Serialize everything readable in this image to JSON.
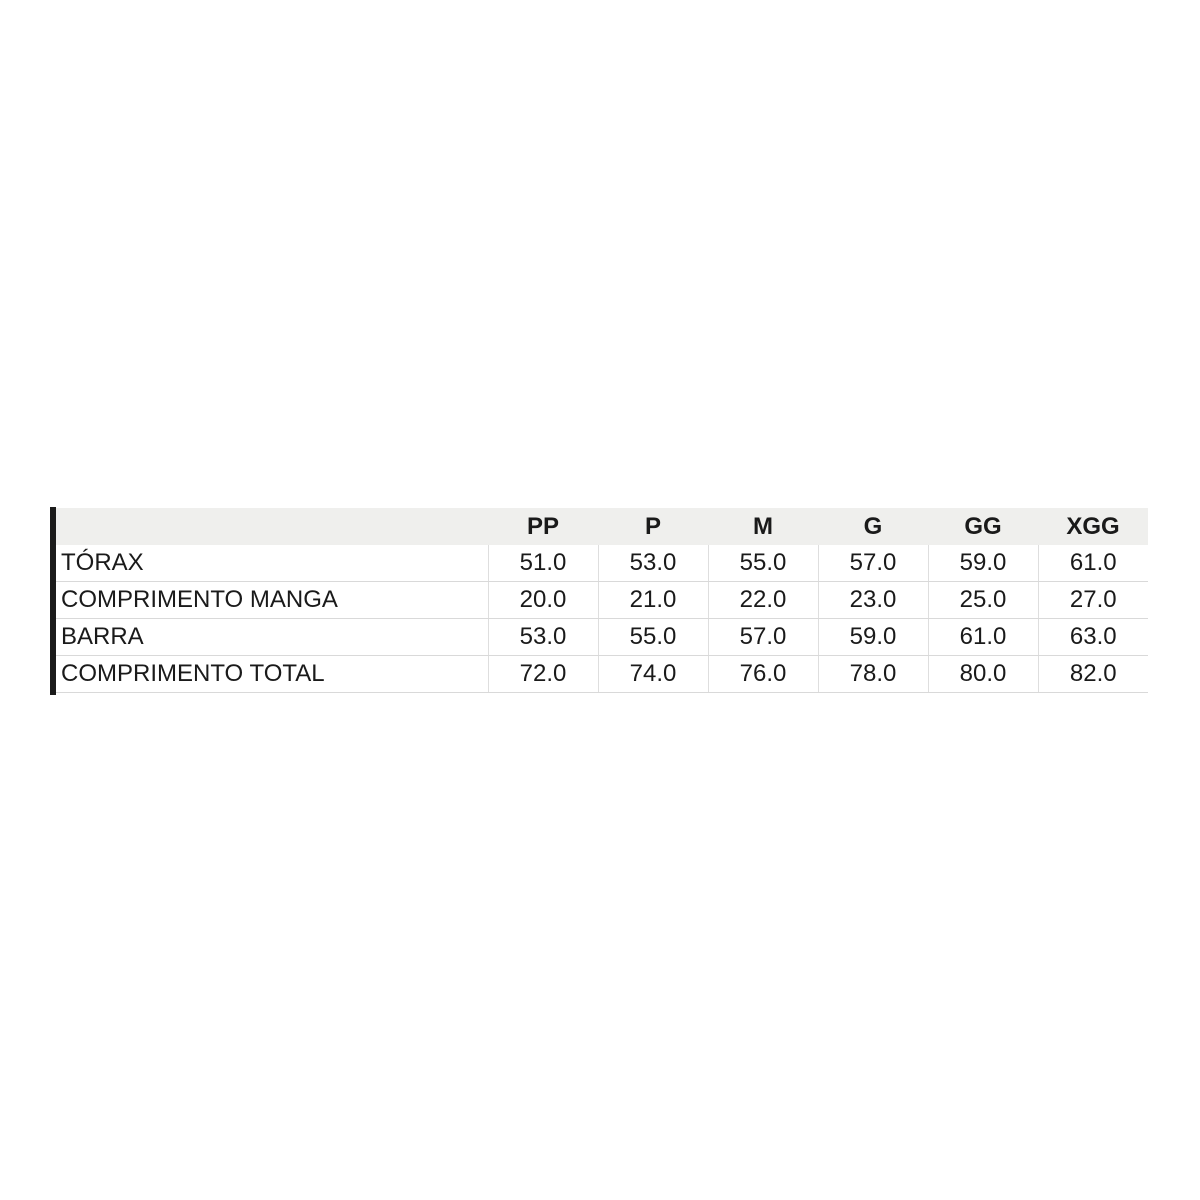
{
  "colors": {
    "background": "#ffffff",
    "header_background": "#efefed",
    "grid_border": "#d9d9d9",
    "text": "#1a1a1a",
    "left_accent_bar": "#1b1b1b"
  },
  "chart_data": {
    "type": "table",
    "columns": [
      "",
      "PP",
      "P",
      "M",
      "G",
      "GG",
      "XGG"
    ],
    "rows": [
      {
        "label": "TÓRAX",
        "values": [
          "51.0",
          "53.0",
          "55.0",
          "57.0",
          "59.0",
          "61.0"
        ]
      },
      {
        "label": "COMPRIMENTO MANGA",
        "values": [
          "20.0",
          "21.0",
          "22.0",
          "23.0",
          "25.0",
          "27.0"
        ]
      },
      {
        "label": "BARRA",
        "values": [
          "53.0",
          "55.0",
          "57.0",
          "59.0",
          "61.0",
          "63.0"
        ]
      },
      {
        "label": "COMPRIMENTO TOTAL",
        "values": [
          "72.0",
          "74.0",
          "76.0",
          "78.0",
          "80.0",
          "82.0"
        ]
      }
    ]
  }
}
